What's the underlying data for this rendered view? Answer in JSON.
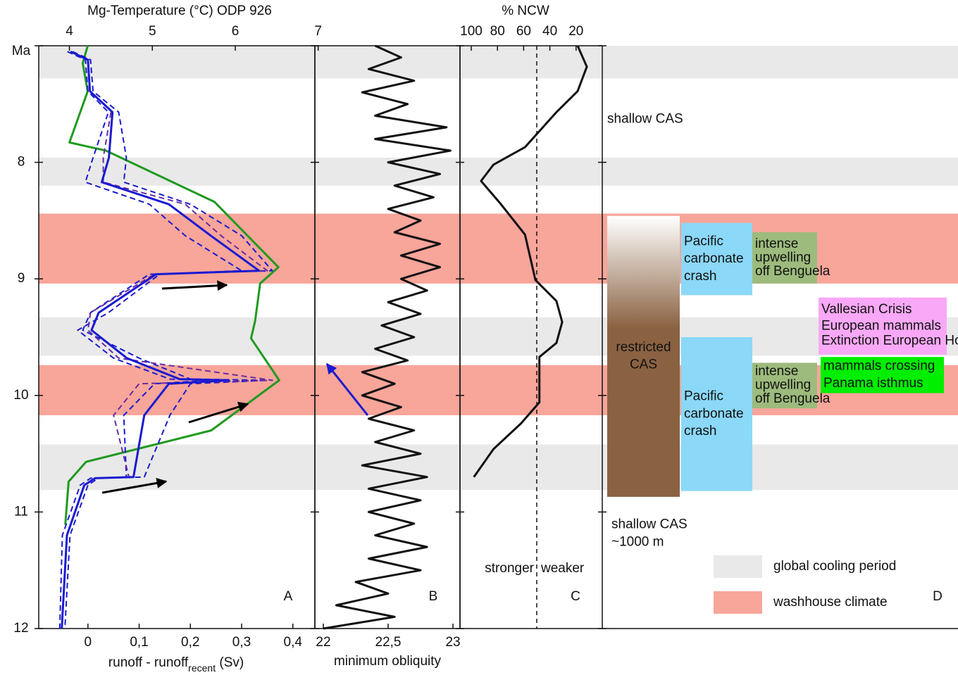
{
  "chart_data": {
    "type": "line",
    "ylim": [
      7,
      12
    ],
    "yticks": [
      {
        "value": 7,
        "label": "Ma"
      },
      8,
      9,
      10,
      11,
      12
    ],
    "bands": [
      {
        "name": "global cooling period",
        "color": "#e9e9e9",
        "ranges": [
          [
            7.0,
            7.28
          ],
          [
            7.96,
            8.2
          ],
          [
            9.33,
            9.66
          ],
          [
            10.42,
            10.81
          ]
        ]
      },
      {
        "name": "washhouse climate",
        "color": "#f8a59a",
        "ranges": [
          [
            8.44,
            9.04
          ],
          [
            9.74,
            10.17
          ]
        ]
      }
    ],
    "panels": [
      {
        "label": "A",
        "axes": [
          {
            "title": "Mg-Temperature (°C) ODP 926",
            "color": "#1f9a1f",
            "position": "top",
            "xlim": [
              3.63,
              6.96
            ],
            "xticks": [
              4,
              5,
              6,
              7
            ]
          },
          {
            "title_parts": [
              "runoff - runoff",
              "recent",
              " (Sv)"
            ],
            "color": "#1a1ad0",
            "position": "bottom",
            "xlim": [
              -0.096,
              0.443
            ],
            "xticks": [
              0,
              {
                "value": 0.1,
                "label": "0,1"
              },
              {
                "value": 0.2,
                "label": "0,2"
              },
              {
                "value": 0.3,
                "label": "0,3"
              },
              {
                "value": 0.4,
                "label": "0,4"
              }
            ]
          }
        ],
        "series": [
          {
            "axis": 0,
            "color": "#1f9a1f",
            "dash": false,
            "age": [
              7.0,
              7.15,
              7.39,
              7.83,
              7.9,
              8.34,
              8.9,
              9.04,
              9.36,
              9.51,
              9.87,
              10.3,
              10.57,
              10.74,
              11.11
            ],
            "values": [
              4.22,
              4.16,
              4.22,
              4.0,
              4.44,
              5.75,
              6.52,
              6.3,
              6.24,
              6.19,
              6.53,
              5.71,
              4.2,
              3.99,
              3.95
            ]
          },
          {
            "axis": 1,
            "color": "#1a1ad0",
            "dash": true,
            "age": [
              7.05,
              7.12,
              7.39,
              7.57,
              7.96,
              8.17,
              8.36,
              8.63,
              8.93,
              8.96,
              9.29,
              9.44,
              9.68,
              9.86,
              9.87,
              9.9,
              10.17,
              10.7,
              10.71,
              10.77,
              11.2,
              12.0
            ],
            "values": [
              -0.03,
              0.005,
              0.01,
              0.06,
              0.075,
              0.07,
              0.2,
              0.3,
              0.36,
              0.12,
              0.005,
              -0.01,
              0.1,
              0.2,
              0.35,
              0.2,
              0.16,
              0.11,
              0.02,
              0.0,
              -0.035,
              -0.045
            ]
          },
          {
            "axis": 1,
            "color": "#1a1ad0",
            "dash": true,
            "age": [
              7.05,
              7.12,
              7.39,
              7.57,
              7.96,
              8.17,
              8.36,
              8.63,
              8.93,
              8.96,
              9.29,
              9.44,
              9.68,
              9.86,
              9.87,
              9.9,
              10.17,
              10.7,
              10.71,
              10.77,
              11.2,
              12.0
            ],
            "values": [
              -0.04,
              -0.005,
              0.0,
              0.04,
              0.01,
              -0.005,
              0.12,
              0.19,
              0.3,
              0.14,
              0.04,
              -0.02,
              0.05,
              0.16,
              0.24,
              0.13,
              0.07,
              0.075,
              0.005,
              -0.015,
              -0.05,
              -0.055
            ]
          },
          {
            "axis": 1,
            "color": "#6a2ca0",
            "dash": true,
            "age": [
              7.57,
              7.96,
              8.17,
              8.36,
              8.63,
              8.93,
              8.96,
              9.29,
              9.44,
              9.68,
              9.87,
              9.9,
              10.17,
              10.7
            ],
            "values": [
              0.045,
              0.03,
              0.03,
              0.19,
              0.26,
              0.35,
              0.13,
              0.005,
              0.0,
              0.06,
              0.36,
              0.1,
              0.05,
              0.08
            ]
          },
          {
            "axis": 1,
            "color": "#1a1ad0",
            "dash": false,
            "age": [
              7.05,
              7.12,
              7.39,
              7.57,
              7.96,
              8.17,
              8.36,
              8.63,
              8.93,
              8.96,
              9.29,
              9.44,
              9.68,
              9.86,
              9.87,
              9.9,
              10.17,
              10.7,
              10.71,
              10.77,
              11.2,
              12.0
            ],
            "values": [
              -0.034,
              0,
              0.004,
              0.048,
              0.041,
              0.027,
              0.158,
              0.24,
              0.334,
              0.133,
              0.021,
              0.007,
              0.076,
              0.179,
              0.275,
              0.158,
              0.11,
              0.089,
              0.014,
              -0.007,
              -0.041,
              -0.051
            ]
          }
        ]
      },
      {
        "label": "B",
        "axes": [
          {
            "title": "minimum obliquity",
            "color": "#111111",
            "position": "bottom",
            "xlim": [
              21.935,
              23.054
            ],
            "xticks": [
              22,
              {
                "value": 22.5,
                "label": "22,5"
              },
              23
            ]
          }
        ],
        "series": [
          {
            "axis": 0,
            "color": "#111111",
            "dash": false,
            "age": [
              7.0,
              7.1,
              7.2,
              7.3,
              7.4,
              7.5,
              7.6,
              7.7,
              7.8,
              7.9,
              8.0,
              8.1,
              8.2,
              8.3,
              8.4,
              8.5,
              8.6,
              8.7,
              8.8,
              8.9,
              9.0,
              9.1,
              9.2,
              9.3,
              9.4,
              9.5,
              9.6,
              9.7,
              9.8,
              9.9,
              10.0,
              10.1,
              10.2,
              10.3,
              10.4,
              10.5,
              10.6,
              10.7,
              10.8,
              10.9,
              11.0,
              11.1,
              11.2,
              11.3,
              11.4,
              11.5,
              11.6,
              11.7,
              11.8,
              11.9,
              12.0
            ],
            "values": [
              22.4,
              22.6,
              22.35,
              22.7,
              22.3,
              22.65,
              22.4,
              22.95,
              22.4,
              22.98,
              22.5,
              22.9,
              22.55,
              22.85,
              22.5,
              22.75,
              22.55,
              22.9,
              22.6,
              22.9,
              22.6,
              22.8,
              22.5,
              22.75,
              22.45,
              22.7,
              22.4,
              22.65,
              22.3,
              22.55,
              22.3,
              22.6,
              22.35,
              22.7,
              22.4,
              22.75,
              22.3,
              22.8,
              22.35,
              22.75,
              22.35,
              22.7,
              22.4,
              22.8,
              22.35,
              22.75,
              22.25,
              22.5,
              22.1,
              22.55,
              22.0
            ]
          }
        ]
      },
      {
        "label": "C",
        "axes": [
          {
            "title": "% NCW",
            "color": "#111111",
            "position": "top",
            "xlim": [
              108.6,
              0
            ],
            "xticks": [
              100,
              80,
              60,
              40,
              20
            ]
          }
        ],
        "refline": 50,
        "notes": [
          "stronger",
          "weaker"
        ],
        "series": [
          {
            "axis": 0,
            "color": "#111111",
            "dash": false,
            "age": [
              7.0,
              7.18,
              7.39,
              7.57,
              7.87,
              8.02,
              8.16,
              8.35,
              8.62,
              9.01,
              9.19,
              9.37,
              9.55,
              9.67,
              9.85,
              10.06,
              10.24,
              10.46,
              10.7
            ],
            "values": [
              18.8,
              11.8,
              18.8,
              35,
              59,
              83,
              92.5,
              78,
              59,
              51,
              35,
              30.6,
              35,
              48,
              48,
              48,
              62,
              83,
              98
            ]
          }
        ]
      },
      {
        "label": "D",
        "events": [
          {
            "lines": [
              "restricted",
              "CAS"
            ],
            "from": 8.46,
            "to": 10.87,
            "color": "#8a6242"
          },
          {
            "lines": [
              "Pacific",
              "carbonate",
              "crash"
            ],
            "from": 8.52,
            "to": 9.14,
            "color": "#8bd8f8"
          },
          {
            "lines": [
              "Pacific",
              "carbonate",
              "crash"
            ],
            "from": 9.5,
            "to": 10.82,
            "color": "#8bd8f8"
          },
          {
            "lines": [
              "intense",
              "upwelling",
              "off Benguela"
            ],
            "from": 8.6,
            "to": 9.04,
            "color": "#9dbb7c"
          },
          {
            "lines": [
              "intense",
              "upwelling",
              "off Benguela"
            ],
            "from": 9.72,
            "to": 10.11,
            "color": "#9dbb7c"
          },
          {
            "lines": [
              "Vallesian Crisis",
              "European mammals",
              "Extinction European Hominoids"
            ],
            "from": 9.16,
            "to": 9.65,
            "color": "#f8a8f6"
          },
          {
            "lines": [
              "mammals crossing",
              "Panama isthmus"
            ],
            "from": 9.67,
            "to": 9.98,
            "color": "#00ee00"
          }
        ],
        "notes": [
          {
            "lines": [
              "shallow CAS"
            ],
            "age": 7.63
          },
          {
            "lines": [
              "shallow CAS",
              "~1000 m"
            ],
            "age": 11.11
          }
        ]
      }
    ]
  }
}
